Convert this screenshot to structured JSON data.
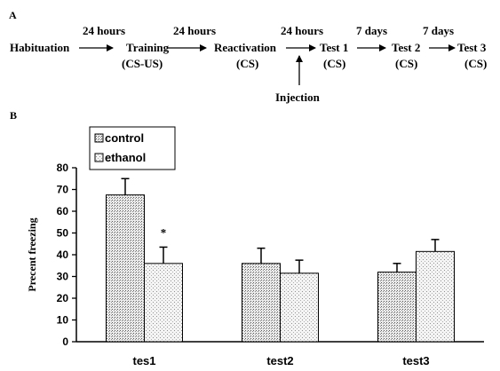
{
  "panel_a": {
    "label": "A",
    "steps": [
      {
        "name": "Habituation",
        "sub": ""
      },
      {
        "name": "Training",
        "sub": "(CS-US)"
      },
      {
        "name": "Reactivation",
        "sub": "(CS)"
      },
      {
        "name": "Test 1",
        "sub": "(CS)"
      },
      {
        "name": "Test 2",
        "sub": "(CS)"
      },
      {
        "name": "Test 3",
        "sub": "(CS)"
      }
    ],
    "intervals": [
      "24 hours",
      "24 hours",
      "24 hours",
      "7 days",
      "7 days"
    ],
    "injection_label": "Injection"
  },
  "panel_b": {
    "label": "B"
  },
  "chart_data": {
    "type": "bar",
    "title": "",
    "xlabel": "",
    "ylabel": "Precent freezing",
    "ylim": [
      0,
      80
    ],
    "yticks": [
      0,
      10,
      20,
      30,
      40,
      50,
      60,
      70,
      80
    ],
    "categories": [
      "tes1",
      "test2",
      "test3"
    ],
    "series": [
      {
        "name": "control",
        "values": [
          67.5,
          36,
          32
        ],
        "errors": [
          7.5,
          7,
          4
        ]
      },
      {
        "name": "ethanol",
        "values": [
          36,
          31.5,
          41.5
        ],
        "errors": [
          7.5,
          6,
          5.5
        ]
      }
    ],
    "annotations": [
      {
        "category": "tes1",
        "series": "ethanol",
        "text": "*"
      }
    ],
    "legend_position": "top-left",
    "grid": false
  }
}
